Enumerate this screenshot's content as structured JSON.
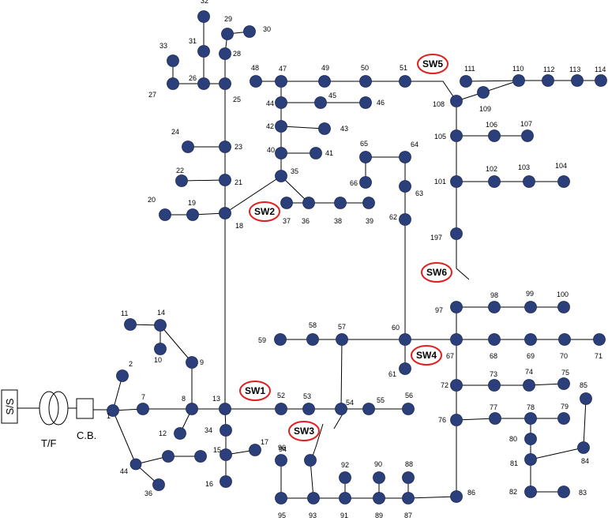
{
  "labels": {
    "ss": "S/S",
    "tf": "T/F",
    "cb": "C.B."
  },
  "colors": {
    "node_fill": "#2b3f7a",
    "switch_outline": "#e02020",
    "line": "#000000"
  },
  "switches": [
    "SW1",
    "SW2",
    "SW3",
    "SW4",
    "SW5",
    "SW6"
  ],
  "nodes": [
    "1",
    "2",
    "7",
    "8",
    "9",
    "10",
    "11",
    "12",
    "13",
    "14",
    "15",
    "16",
    "17",
    "18",
    "19",
    "20",
    "21",
    "22",
    "23",
    "24",
    "25",
    "26",
    "27",
    "28",
    "29",
    "30",
    "31",
    "32",
    "33",
    "34",
    "35",
    "36",
    "37",
    "38",
    "39",
    "40",
    "41",
    "42",
    "43",
    "44",
    "45",
    "46",
    "47",
    "48",
    "49",
    "50",
    "51",
    "52",
    "53",
    "54",
    "55",
    "56",
    "57",
    "58",
    "59",
    "60",
    "61",
    "62",
    "63",
    "64",
    "65",
    "66",
    "67",
    "68",
    "69",
    "70",
    "71",
    "72",
    "73",
    "74",
    "75",
    "76",
    "77",
    "78",
    "79",
    "80",
    "81",
    "82",
    "83",
    "84",
    "85",
    "86",
    "87",
    "88",
    "89",
    "90",
    "91",
    "92",
    "93",
    "94",
    "95",
    "96",
    "97",
    "98",
    "99",
    "100",
    "101",
    "102",
    "103",
    "104",
    "105",
    "106",
    "107",
    "108",
    "109",
    "110",
    "111",
    "112",
    "113",
    "114",
    "197"
  ],
  "extra_labels": {
    "n36_lower": "36",
    "n44_lower": "44"
  }
}
